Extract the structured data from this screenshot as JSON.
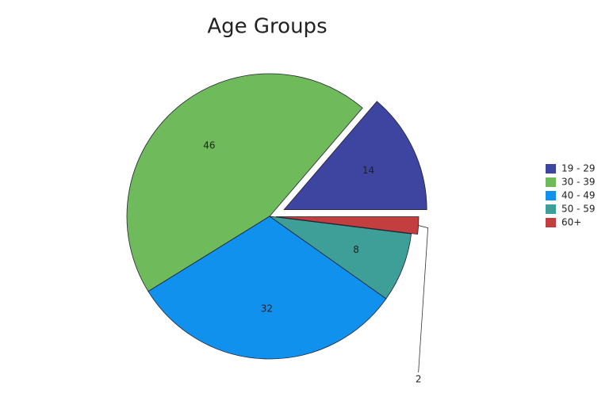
{
  "chart_data": {
    "type": "pie",
    "title": "Age Groups",
    "categories": [
      "19 - 29",
      "30 - 39",
      "40 - 49",
      "50 - 59",
      "60+"
    ],
    "values": [
      14,
      46,
      32,
      8,
      2
    ],
    "colors": [
      "#3d45a0",
      "#6fbb5b",
      "#1191ee",
      "#3e9e98",
      "#c33f3f"
    ],
    "legend": "right"
  }
}
